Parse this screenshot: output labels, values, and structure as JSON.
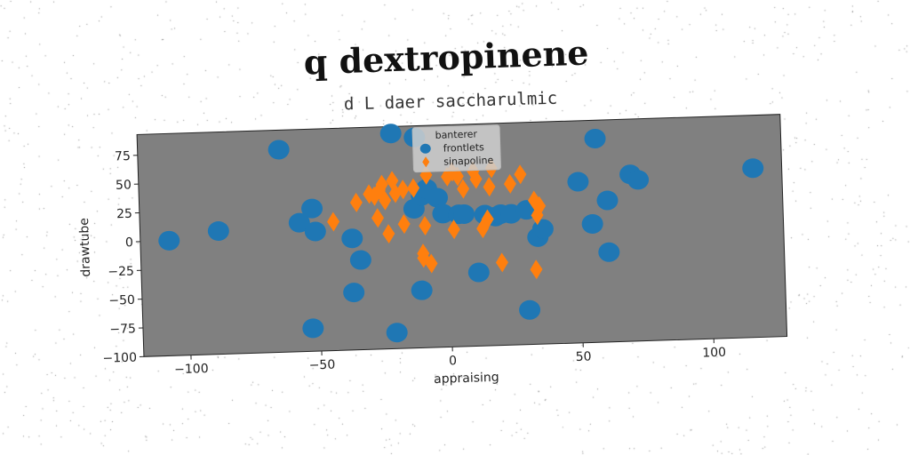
{
  "chart_data": {
    "type": "scatter",
    "title": "q dextropinene",
    "subtitle": "d L daer saccharulmic",
    "xlabel": "appraising",
    "ylabel": "drawtube",
    "xlim": [
      -118,
      128
    ],
    "ylim": [
      -100,
      93
    ],
    "xticks": [
      -100,
      -50,
      0,
      50,
      100
    ],
    "yticks": [
      -100,
      -75,
      -50,
      -25,
      0,
      25,
      50,
      75
    ],
    "grid": false,
    "background": "#808080",
    "legend": {
      "title": "banterer",
      "placement": "top-center"
    },
    "series": [
      {
        "name": "frontlets",
        "marker": "circle",
        "color": "#1f77b4",
        "points": [
          [
            -107,
            0
          ],
          [
            -88,
            7
          ],
          [
            -64,
            76
          ],
          [
            -57,
            12
          ],
          [
            -52,
            24
          ],
          [
            -51,
            4
          ],
          [
            -53,
            -80
          ],
          [
            -37,
            -3
          ],
          [
            -34,
            -22
          ],
          [
            -37,
            -50
          ],
          [
            -21,
            87
          ],
          [
            -21,
            -86
          ],
          [
            -12,
            83
          ],
          [
            -13,
            21
          ],
          [
            -10,
            32
          ],
          [
            -8,
            38
          ],
          [
            -4,
            30
          ],
          [
            -11,
            -50
          ],
          [
            -2,
            16
          ],
          [
            4,
            15
          ],
          [
            6,
            15
          ],
          [
            11,
            -36
          ],
          [
            14,
            14
          ],
          [
            18,
            12
          ],
          [
            20,
            14
          ],
          [
            24,
            14
          ],
          [
            30,
            17
          ],
          [
            34,
            -7
          ],
          [
            36,
            0
          ],
          [
            30,
            -70
          ],
          [
            50,
            40
          ],
          [
            55,
            3
          ],
          [
            57,
            77
          ],
          [
            61,
            23
          ],
          [
            61,
            -22
          ],
          [
            70,
            45
          ],
          [
            73,
            40
          ],
          [
            117,
            47
          ]
        ]
      },
      {
        "name": "sinapoline",
        "marker": "diamond",
        "color": "#ff7f0e",
        "points": [
          [
            -44,
            12
          ],
          [
            -35,
            28
          ],
          [
            -30,
            35
          ],
          [
            -28,
            33
          ],
          [
            -26,
            38
          ],
          [
            -27,
            14
          ],
          [
            -25,
            43
          ],
          [
            -24,
            29
          ],
          [
            -23,
            0
          ],
          [
            -21,
            46
          ],
          [
            -20,
            35
          ],
          [
            -17,
            8
          ],
          [
            -17,
            38
          ],
          [
            -13,
            39
          ],
          [
            -10,
            -18
          ],
          [
            -10,
            -22
          ],
          [
            -7,
            -27
          ],
          [
            -9,
            6
          ],
          [
            -8,
            50
          ],
          [
            0,
            48
          ],
          [
            2,
            52
          ],
          [
            4,
            48
          ],
          [
            2,
            2
          ],
          [
            6,
            37
          ],
          [
            10,
            52
          ],
          [
            11,
            45
          ],
          [
            13,
            2
          ],
          [
            15,
            10
          ],
          [
            16,
            38
          ],
          [
            17,
            54
          ],
          [
            20,
            -28
          ],
          [
            24,
            40
          ],
          [
            28,
            48
          ],
          [
            33,
            25
          ],
          [
            35,
            20
          ],
          [
            34,
            12
          ],
          [
            33,
            -35
          ]
        ]
      }
    ]
  }
}
